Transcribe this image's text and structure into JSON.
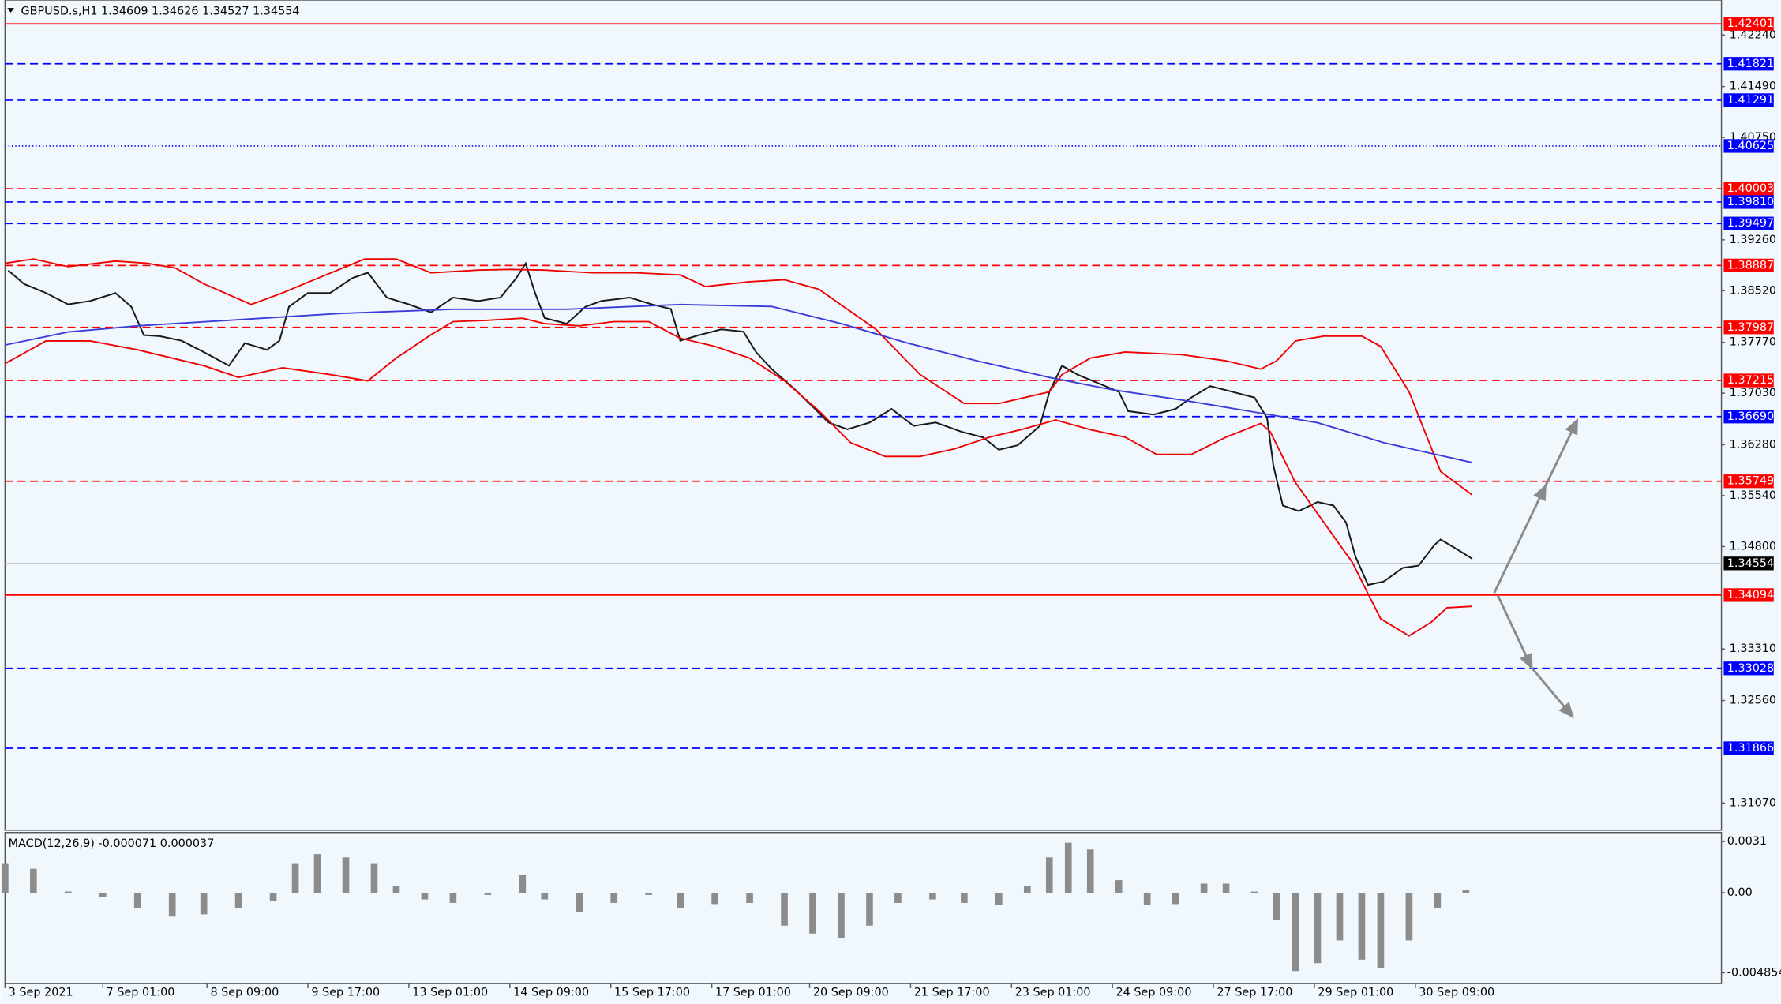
{
  "chart_data": [
    {
      "type": "line",
      "title": "GBPUSD.s,H1  1.34609 1.34626 1.34527 1.34554",
      "xlim": [
        0,
        544
      ],
      "ylim": [
        1.30674,
        1.42748
      ],
      "yticks": [
        {
          "value": 1.4224,
          "label": "1.42240"
        },
        {
          "value": 1.4149,
          "label": "1.41490"
        },
        {
          "value": 1.4075,
          "label": "1.40750"
        },
        {
          "value": 1.3926,
          "label": "1.39260"
        },
        {
          "value": 1.3852,
          "label": "1.38520"
        },
        {
          "value": 1.3777,
          "label": "1.37770"
        },
        {
          "value": 1.3703,
          "label": "1.37030"
        },
        {
          "value": 1.3628,
          "label": "1.36280"
        },
        {
          "value": 1.3554,
          "label": "1.35540"
        },
        {
          "value": 1.348,
          "label": "1.34800"
        },
        {
          "value": 1.3331,
          "label": "1.33310"
        },
        {
          "value": 1.3256,
          "label": "1.32560"
        },
        {
          "value": 1.3107,
          "label": "1.31070"
        }
      ],
      "xticks": [
        {
          "value": 0,
          "label": "3 Sep 2021"
        },
        {
          "value": 31,
          "label": "7 Sep 01:00"
        },
        {
          "value": 64,
          "label": "8 Sep 09:00"
        },
        {
          "value": 96,
          "label": "9 Sep 17:00"
        },
        {
          "value": 128,
          "label": "13 Sep 01:00"
        },
        {
          "value": 160,
          "label": "14 Sep 09:00"
        },
        {
          "value": 192,
          "label": "15 Sep 17:00"
        },
        {
          "value": 224,
          "label": "17 Sep 01:00"
        },
        {
          "value": 255,
          "label": "20 Sep 09:00"
        },
        {
          "value": 287,
          "label": "21 Sep 17:00"
        },
        {
          "value": 319,
          "label": "23 Sep 01:00"
        },
        {
          "value": 351,
          "label": "24 Sep 09:00"
        },
        {
          "value": 383,
          "label": "27 Sep 17:00"
        },
        {
          "value": 415,
          "label": "29 Sep 01:00"
        },
        {
          "value": 447,
          "label": "30 Sep 09:00"
        }
      ],
      "levels": [
        {
          "value": 1.42401,
          "color": "#ff0000",
          "style": "solid"
        },
        {
          "value": 1.41821,
          "color": "#0000ff",
          "style": "dashed"
        },
        {
          "value": 1.41291,
          "color": "#0000ff",
          "style": "dashed"
        },
        {
          "value": 1.40625,
          "color": "#0000ff",
          "style": "dotted"
        },
        {
          "value": 1.40003,
          "color": "#ff0000",
          "style": "dashed"
        },
        {
          "value": 1.3981,
          "label": "1.39810",
          "color": "#0000ff",
          "style": "dashed"
        },
        {
          "value": 1.39497,
          "color": "#0000ff",
          "style": "dashed"
        },
        {
          "value": 1.38887,
          "color": "#ff0000",
          "style": "dashed"
        },
        {
          "value": 1.37987,
          "color": "#ff0000",
          "style": "dashed"
        },
        {
          "value": 1.37215,
          "color": "#ff0000",
          "style": "dashed"
        },
        {
          "value": 1.3669,
          "label": "1.36690",
          "color": "#0000ff",
          "style": "dashed"
        },
        {
          "value": 1.35749,
          "color": "#ff0000",
          "style": "dashed"
        },
        {
          "value": 1.34554,
          "color": "#000000",
          "style": "current"
        },
        {
          "value": 1.34094,
          "color": "#ff0000",
          "style": "solid"
        },
        {
          "value": 1.33028,
          "color": "#0000ff",
          "style": "dashed"
        },
        {
          "value": 1.31866,
          "color": "#0000ff",
          "style": "dashed"
        }
      ],
      "series": [
        {
          "color": "#1a1a1a",
          "x": [
            1,
            6,
            13,
            20,
            27,
            35,
            40,
            44,
            49,
            56,
            63,
            71,
            76,
            83,
            87,
            90,
            96,
            103,
            110,
            115,
            121,
            128,
            135,
            142,
            150,
            157,
            162,
            165,
            168,
            171,
            178,
            184,
            189,
            198,
            205,
            211,
            214,
            220,
            227,
            234,
            238,
            243,
            250,
            256,
            261,
            267,
            274,
            281,
            288,
            295,
            303,
            310,
            315,
            321,
            328,
            331,
            335,
            340,
            347,
            353,
            356,
            364,
            371,
            376,
            382,
            389,
            396,
            400,
            402,
            405,
            410,
            416,
            421,
            425,
            428,
            432,
            437,
            443,
            448,
            453,
            455,
            461,
            465
          ],
          "values": [
            1.38817,
            1.38618,
            1.38486,
            1.38321,
            1.38371,
            1.38486,
            1.38288,
            1.37875,
            1.37859,
            1.37793,
            1.37627,
            1.37429,
            1.37759,
            1.3766,
            1.37793,
            1.38288,
            1.38486,
            1.38486,
            1.38701,
            1.38784,
            1.3842,
            1.38321,
            1.38205,
            1.3842,
            1.38371,
            1.3842,
            1.38701,
            1.38916,
            1.38486,
            1.38123,
            1.3804,
            1.38288,
            1.38371,
            1.3842,
            1.38321,
            1.38255,
            1.37793,
            1.37875,
            1.37958,
            1.37925,
            1.37627,
            1.3738,
            1.37099,
            1.36834,
            1.36603,
            1.36504,
            1.36603,
            1.36801,
            1.36554,
            1.36603,
            1.36471,
            1.36388,
            1.36207,
            1.36273,
            1.36554,
            1.37049,
            1.37429,
            1.37297,
            1.37165,
            1.37049,
            1.36768,
            1.36719,
            1.36801,
            1.36967,
            1.37132,
            1.37049,
            1.36967,
            1.36669,
            1.35976,
            1.35397,
            1.35315,
            1.35447,
            1.35397,
            1.3515,
            1.34654,
            1.34241,
            1.34291,
            1.34489,
            1.34522,
            1.34819,
            1.34902,
            1.34737,
            1.34621
          ]
        },
        {
          "color": "#ee0000",
          "x": [
            0,
            9,
            20,
            35,
            45,
            54,
            63,
            78,
            88,
            99,
            114,
            124,
            135,
            150,
            160,
            171,
            186,
            200,
            214,
            222,
            236,
            247,
            258,
            276,
            290,
            304,
            315,
            331,
            335,
            344,
            355,
            373,
            387,
            398,
            403,
            409,
            418,
            430,
            436,
            445,
            455,
            465
          ],
          "values": [
            1.3892,
            1.3898,
            1.3887,
            1.3895,
            1.3892,
            1.3885,
            1.3862,
            1.3832,
            1.3849,
            1.387,
            1.3898,
            1.3898,
            1.3878,
            1.3882,
            1.3883,
            1.3882,
            1.3878,
            1.3878,
            1.3875,
            1.3858,
            1.3865,
            1.3868,
            1.3854,
            1.3796,
            1.373,
            1.3688,
            1.3688,
            1.3705,
            1.373,
            1.3754,
            1.3763,
            1.3759,
            1.375,
            1.3738,
            1.375,
            1.3779,
            1.3786,
            1.3786,
            1.3771,
            1.3705,
            1.3589,
            1.3555
          ]
        },
        {
          "color": "#ee0000",
          "x": [
            0,
            13,
            27,
            42,
            53,
            63,
            74,
            88,
            103,
            115,
            124,
            135,
            142,
            153,
            164,
            171,
            182,
            193,
            204,
            214,
            225,
            236,
            247,
            258,
            268,
            279,
            290,
            301,
            312,
            322,
            333,
            344,
            355,
            365,
            376,
            387,
            398,
            401,
            409,
            418,
            427,
            436,
            445,
            452,
            457,
            465
          ],
          "values": [
            1.3746,
            1.3779,
            1.3779,
            1.3766,
            1.3754,
            1.3743,
            1.3726,
            1.374,
            1.373,
            1.3721,
            1.3754,
            1.3788,
            1.3807,
            1.3809,
            1.3812,
            1.3804,
            1.3801,
            1.3807,
            1.3807,
            1.3783,
            1.3771,
            1.3754,
            1.3721,
            1.3677,
            1.3631,
            1.3611,
            1.3611,
            1.3622,
            1.3639,
            1.365,
            1.3664,
            1.365,
            1.3639,
            1.3614,
            1.3614,
            1.3639,
            1.3659,
            1.3647,
            1.3573,
            1.3515,
            1.3457,
            1.3375,
            1.335,
            1.337,
            1.3391,
            1.3393
          ]
        },
        {
          "color": "#3b3bd9",
          "x": [
            0,
            20,
            42,
            71,
            106,
            142,
            178,
            214,
            243,
            265,
            286,
            308,
            331,
            351,
            373,
            394,
            416,
            437,
            465
          ],
          "values": [
            1.3773,
            1.3792,
            1.3801,
            1.3809,
            1.3819,
            1.3825,
            1.3825,
            1.3832,
            1.3829,
            1.3804,
            1.3776,
            1.375,
            1.3726,
            1.3708,
            1.3693,
            1.3677,
            1.366,
            1.3631,
            1.3602
          ]
        }
      ]
    },
    {
      "type": "bar",
      "title": "MACD(12,26,9) -0.000071 0.000037",
      "color": "#8c8c8c",
      "ylim": [
        -0.00551,
        0.00365
      ],
      "yticks": [
        0.0031,
        {
          "value": 0,
          "label": "0.00"
        },
        -0.004854
      ],
      "x": [
        0,
        9,
        20,
        31,
        42,
        53,
        63,
        74,
        85,
        92,
        99,
        108,
        117,
        124,
        133,
        142,
        153,
        164,
        171,
        182,
        193,
        204,
        214,
        225,
        236,
        247,
        256,
        265,
        274,
        283,
        294,
        304,
        315,
        324,
        331,
        337,
        344,
        353,
        362,
        371,
        380,
        387,
        396,
        403,
        409,
        416,
        423,
        430,
        436,
        445,
        454,
        463
      ],
      "values": [
        0.00179,
        0.00145,
        7e-05,
        -0.00028,
        -0.00096,
        -0.00145,
        -0.00131,
        -0.00096,
        -0.00048,
        0.00179,
        0.00234,
        0.00214,
        0.00179,
        0.00041,
        -0.00041,
        -0.00062,
        -0.00014,
        0.0011,
        -0.00041,
        -0.00117,
        -0.00062,
        -0.00014,
        -0.00096,
        -0.00069,
        -0.00062,
        -0.002,
        -0.00248,
        -0.00276,
        -0.002,
        -0.00062,
        -0.00041,
        -0.00062,
        -0.00076,
        0.00041,
        0.00214,
        0.00303,
        0.00262,
        0.00076,
        -0.00076,
        -0.00069,
        0.00055,
        0.00055,
        7e-05,
        -0.00165,
        -0.00475,
        -0.00427,
        -0.00289,
        -0.00406,
        -0.00455,
        -0.00289,
        -0.00096,
        0.00014
      ]
    }
  ]
}
